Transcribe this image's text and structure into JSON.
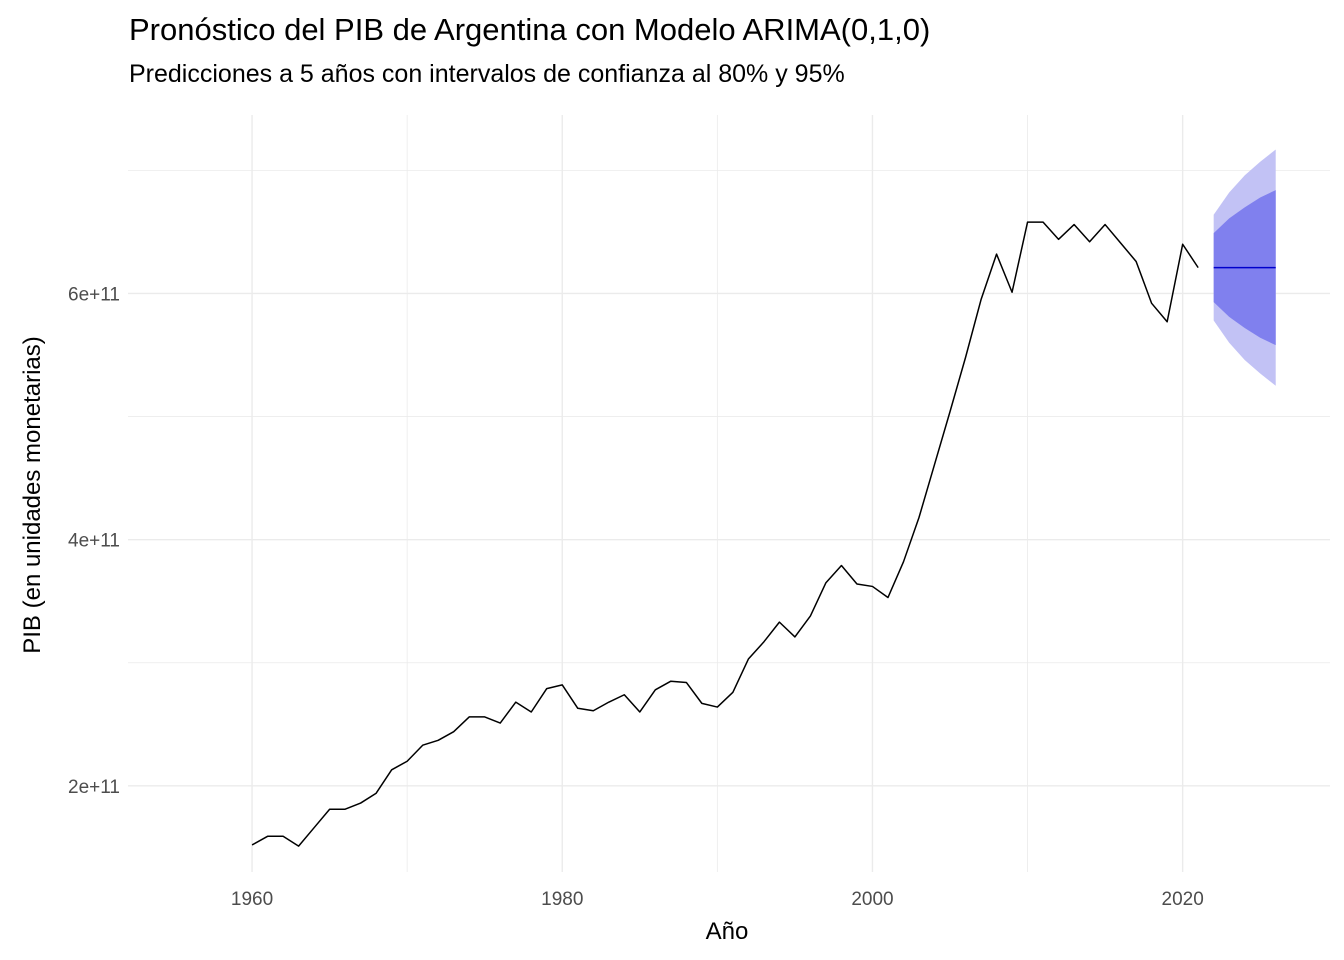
{
  "chart_data": {
    "type": "line",
    "title": "Pronóstico del PIB de Argentina con Modelo ARIMA(0,1,0)",
    "subtitle": "Predicciones a 5 años con intervalos de confianza al 80% y 95%",
    "xlabel": "Año",
    "ylabel": "PIB (en unidades monetarias)",
    "xlim": [
      1952,
      2029.5
    ],
    "ylim": [
      130000000000.0,
      745000000000.0
    ],
    "x_ticks": [
      1960,
      1980,
      2000,
      2020
    ],
    "x_tick_labels": [
      "1960",
      "1980",
      "2000",
      "2020"
    ],
    "y_ticks": [
      200000000000.0,
      400000000000.0,
      600000000000.0
    ],
    "y_tick_labels": [
      "2e+11",
      "4e+11",
      "6e+11"
    ],
    "grid": true,
    "legend": "none",
    "colors": {
      "history": "#000000",
      "forecast_line": "#0000CC",
      "band_80": "#8080EE",
      "band_95": "#C2C2F5",
      "grid": "#EBEBEB"
    },
    "series": [
      {
        "x": [
          1960,
          1961,
          1962,
          1963,
          1964,
          1965,
          1966,
          1967,
          1968,
          1969,
          1970,
          1971,
          1972,
          1973,
          1974,
          1975,
          1976,
          1977,
          1978,
          1979,
          1980,
          1981,
          1982,
          1983,
          1984,
          1985,
          1986,
          1987,
          1988,
          1989,
          1990,
          1991,
          1992,
          1993,
          1994,
          1995,
          1996,
          1997,
          1998,
          1999,
          2000,
          2001,
          2002,
          2003,
          2004,
          2005,
          2006,
          2007,
          2008,
          2009,
          2010,
          2011,
          2012,
          2013,
          2014,
          2015,
          2016,
          2017,
          2018,
          2019,
          2020,
          2021
        ],
        "values": [
          152000000000.0,
          159000000000.0,
          159000000000.0,
          151000000000.0,
          166000000000.0,
          181000000000.0,
          181000000000.0,
          186000000000.0,
          194000000000.0,
          213000000000.0,
          220000000000.0,
          233000000000.0,
          237000000000.0,
          244000000000.0,
          256000000000.0,
          256000000000.0,
          251000000000.0,
          268000000000.0,
          260000000000.0,
          279000000000.0,
          282000000000.0,
          263000000000.0,
          261000000000.0,
          268000000000.0,
          274000000000.0,
          260000000000.0,
          278000000000.0,
          285000000000.0,
          284000000000.0,
          267000000000.0,
          264000000000.0,
          276000000000.0,
          303000000000.0,
          317000000000.0,
          333000000000.0,
          321000000000.0,
          338000000000.0,
          365000000000.0,
          379000000000.0,
          364000000000.0,
          362000000000.0,
          353000000000.0,
          382000000000.0,
          418000000000.0,
          461000000000.0,
          504000000000.0,
          548000000000.0,
          595000000000.0,
          632000000000.0,
          601000000000.0,
          658000000000.0,
          658000000000.0,
          644000000000.0,
          656000000000.0,
          642000000000.0,
          656000000000.0,
          641000000000.0,
          626000000000.0,
          592000000000.0,
          577000000000.0,
          640000000000.0,
          621000000000.0
        ]
      },
      {
        "x": [
          2022,
          2023,
          2024,
          2025,
          2026
        ],
        "values": [
          621000000000.0,
          621000000000.0,
          621000000000.0,
          621000000000.0,
          621000000000.0
        ],
        "lower_80": [
          593000000000.0,
          581000000000.0,
          572000000000.0,
          564000000000.0,
          558000000000.0
        ],
        "upper_80": [
          649000000000.0,
          661000000000.0,
          670000000000.0,
          678000000000.0,
          684000000000.0
        ],
        "lower_95": [
          578000000000.0,
          560000000000.0,
          546000000000.0,
          535000000000.0,
          525000000000.0
        ],
        "upper_95": [
          664000000000.0,
          682000000000.0,
          696000000000.0,
          707000000000.0,
          717000000000.0
        ]
      }
    ]
  }
}
